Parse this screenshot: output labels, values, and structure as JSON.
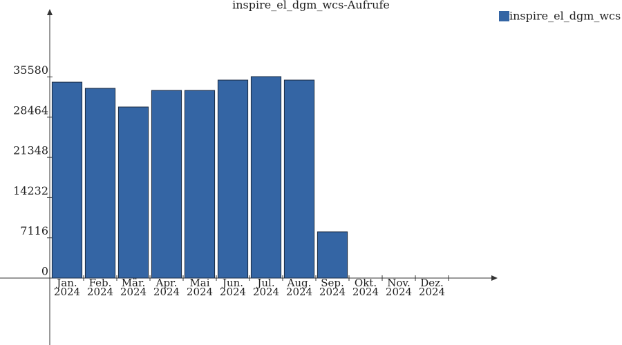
{
  "chart_data": {
    "type": "bar",
    "title": "inspire_el_dgm_wcs-Aufrufe",
    "categories": [
      "Jan.\n2024",
      "Feb.\n2024",
      "Mär.\n2024",
      "Apr.\n2024",
      "Mai\n2024",
      "Jun.\n2024",
      "Jul.\n2024",
      "Aug.\n2024",
      "Sep.\n2024",
      "Okt.\n2024",
      "Nov.\n2024",
      "Dez.\n2024"
    ],
    "series": [
      {
        "name": "inspire_el_dgm_wcs",
        "color": "#3465a4",
        "values": [
          34660,
          33570,
          30270,
          33200,
          33200,
          35030,
          35640,
          35030,
          8180,
          0,
          0,
          0
        ]
      }
    ],
    "ylim": [
      0,
      47000
    ],
    "yticks": [
      0,
      7116,
      14232,
      21348,
      28464,
      35580
    ],
    "legend": "top-right"
  }
}
